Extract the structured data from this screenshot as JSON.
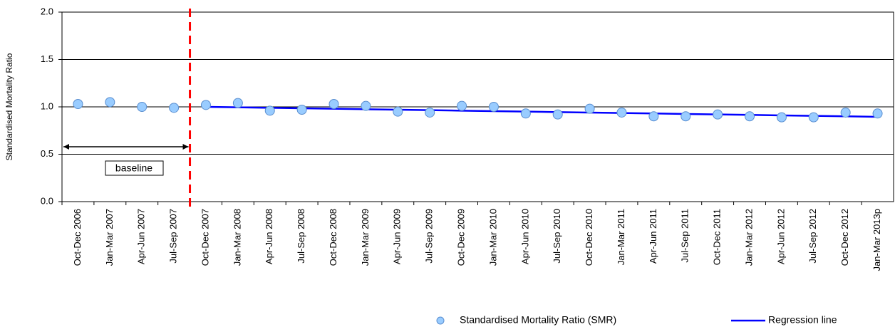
{
  "chart_data": {
    "type": "line",
    "y_label": "Standardised Mortality Ratio",
    "annotation": "baseline",
    "categories": [
      "Oct-Dec 2006",
      "Jan-Mar 2007",
      "Apr-Jun 2007",
      "Jul-Sep 2007",
      "Oct-Dec 2007",
      "Jan-Mar 2008",
      "Apr-Jun 2008",
      "Jul-Sep 2008",
      "Oct-Dec 2008",
      "Jan-Mar 2009",
      "Apr-Jun 2009",
      "Jul-Sep 2009",
      "Oct-Dec 2009",
      "Jan-Mar 2010",
      "Apr-Jun 2010",
      "Jul-Sep 2010",
      "Oct-Dec 2010",
      "Jan-Mar 2011",
      "Apr-Jun 2011",
      "Jul-Sep 2011",
      "Oct-Dec 2011",
      "Jan-Mar 2012",
      "Apr-Jun 2012",
      "Jul-Sep 2012",
      "Oct-Dec 2012",
      "Jan-Mar 2013p"
    ],
    "series": [
      {
        "name": "Standardised Mortality Ratio (SMR)",
        "color": "#99ccff",
        "marker": "circle",
        "values": [
          1.03,
          1.05,
          1.0,
          0.99,
          1.02,
          1.04,
          0.96,
          0.97,
          1.03,
          1.01,
          0.95,
          0.94,
          1.01,
          1.0,
          0.93,
          0.92,
          0.98,
          0.94,
          0.9,
          0.9,
          0.92,
          0.9,
          0.89,
          0.89,
          0.94,
          0.93
        ]
      },
      {
        "name": "Regression line",
        "color": "#0000ff",
        "marker": "line",
        "values": [
          null,
          null,
          null,
          null,
          1.0,
          0.995,
          0.99,
          0.985,
          0.98,
          0.975,
          0.97,
          0.965,
          0.96,
          0.955,
          0.95,
          0.945,
          0.94,
          0.935,
          0.93,
          0.925,
          0.92,
          0.915,
          0.91,
          0.905,
          0.9,
          0.895
        ]
      }
    ],
    "ylim": [
      0,
      2
    ],
    "yticks": [
      {
        "value": 0,
        "label": "0.0"
      },
      {
        "value": 0.5,
        "label": "0.5"
      },
      {
        "value": 1,
        "label": "1.0"
      },
      {
        "value": 1.5,
        "label": "1.5"
      },
      {
        "value": 2,
        "label": "2.0"
      }
    ],
    "grid": true
  }
}
